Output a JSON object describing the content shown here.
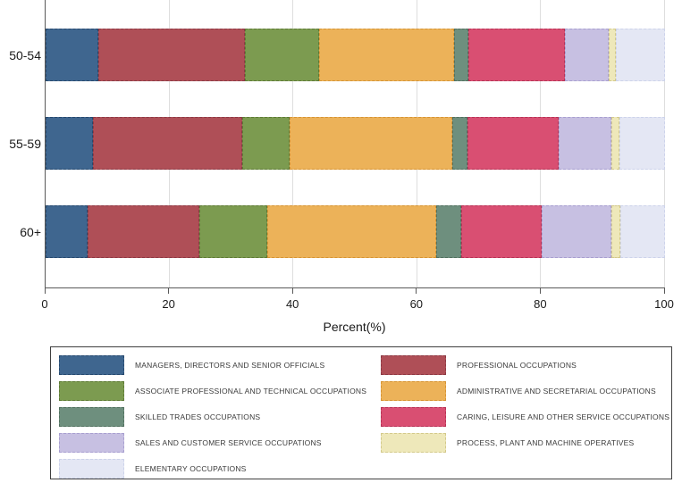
{
  "chart_data": {
    "type": "bar",
    "orientation": "horizontal",
    "stacked": true,
    "title": "",
    "xlabel": "Percent(%)",
    "xlim": [
      0,
      100
    ],
    "xticks": [
      0,
      20,
      40,
      60,
      80,
      100
    ],
    "grid": "vertical-light",
    "categories": [
      "50-54",
      "55-59",
      "60+"
    ],
    "series": [
      {
        "name": "MANAGERS, DIRECTORS AND SENIOR OFFICIALS",
        "color": "#3F668F",
        "border": "#27496E",
        "values": [
          8.5,
          7.7,
          6.8
        ]
      },
      {
        "name": "PROFESSIONAL OCCUPATIONS",
        "color": "#AF4F57",
        "border": "#8C3A44",
        "values": [
          23.7,
          24.0,
          18.0
        ]
      },
      {
        "name": "ASSOCIATE PROFESSIONAL AND TECHNICAL OCCUPATIONS",
        "color": "#7C9B50",
        "border": "#5E7A36",
        "values": [
          12.0,
          7.7,
          11.0
        ]
      },
      {
        "name": "ADMINISTRATIVE AND SECRETARIAL OCCUPATIONS",
        "color": "#ECB259",
        "border": "#D69434",
        "values": [
          21.7,
          26.3,
          27.2
        ]
      },
      {
        "name": "SKILLED TRADES OCCUPATIONS",
        "color": "#6E8F7E",
        "border": "#52705F",
        "values": [
          2.3,
          2.4,
          4.1
        ]
      },
      {
        "name": "CARING, LEISURE AND OTHER SERVICE OCCUPATIONS",
        "color": "#D94F72",
        "border": "#B63355",
        "values": [
          15.7,
          14.7,
          13.0
        ]
      },
      {
        "name": "SALES AND CUSTOMER SERVICE OCCUPATIONS",
        "color": "#C7C0E2",
        "border": "#A89FD0",
        "values": [
          7.0,
          8.5,
          11.3
        ]
      },
      {
        "name": "PROCESS, PLANT AND MACHINE OPERATIVES",
        "color": "#EEE8BA",
        "border": "#D3C98B",
        "values": [
          1.2,
          1.3,
          1.4
        ]
      },
      {
        "name": "ELEMENTARY OCCUPATIONS",
        "color": "#E4E7F4",
        "border": "#CDD3EA",
        "values": [
          7.9,
          7.4,
          7.2
        ]
      }
    ],
    "legend": {
      "position": "bottom",
      "columns": 2,
      "column_series_indexes": [
        [
          0,
          2,
          4,
          6,
          8
        ],
        [
          1,
          3,
          5,
          7
        ]
      ]
    }
  }
}
